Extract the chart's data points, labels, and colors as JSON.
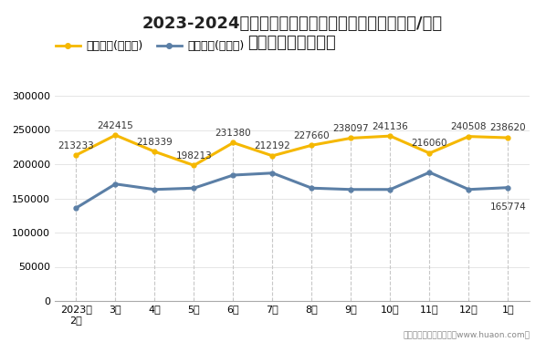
{
  "title_line1": "2023-2024年无锡高新技术产业开发区（境内目的地/货源",
  "title_line2": "地）进、出口额统计",
  "x_labels": [
    "2023年\n2月",
    "3月",
    "4月",
    "5月",
    "6月",
    "7月",
    "8月",
    "9月",
    "10月",
    "11月",
    "12月",
    "1月"
  ],
  "export_values": [
    213233,
    242415,
    218339,
    198213,
    231380,
    212192,
    227660,
    238097,
    241136,
    216060,
    240508,
    238620
  ],
  "import_values": [
    136000,
    171000,
    163000,
    165000,
    184000,
    187000,
    165000,
    163000,
    163000,
    188000,
    163000,
    165774
  ],
  "export_label": "出口总额(万美元)",
  "import_label": "进口总额(万美元)",
  "export_color": "#F5B800",
  "import_color": "#5B7FA6",
  "ylim": [
    0,
    300000
  ],
  "yticks": [
    0,
    50000,
    100000,
    150000,
    200000,
    250000,
    300000
  ],
  "bg_color": "#FFFFFF",
  "footer": "制图：华经产业研究院（www.huaon.com）",
  "title_fontsize": 13,
  "tick_fontsize": 8,
  "annotation_fontsize": 7.5,
  "legend_fontsize": 9
}
